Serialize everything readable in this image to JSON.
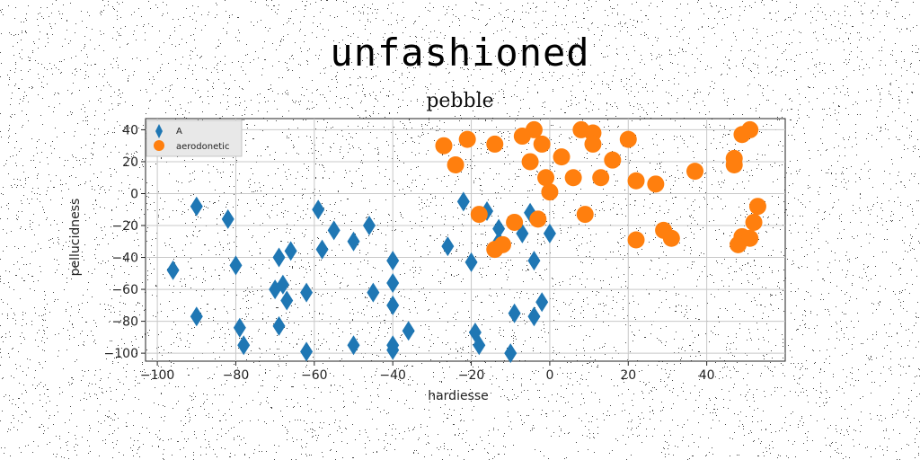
{
  "title": "unfashioned",
  "chart_data": {
    "type": "scatter",
    "title": "pebble",
    "xlabel": "hardiesse",
    "ylabel": "pellucidness",
    "xlim": [
      -103,
      60
    ],
    "ylim": [
      -105,
      47
    ],
    "xticks": [
      -100,
      -80,
      -60,
      -40,
      -20,
      0,
      20,
      40
    ],
    "yticks": [
      40,
      20,
      0,
      -20,
      -40,
      -60,
      -80,
      -100
    ],
    "grid": true,
    "legend_position": "top-left",
    "series": [
      {
        "name": "A",
        "marker": "diamond",
        "color": "#1f77b4",
        "points": [
          [
            -96,
            -48
          ],
          [
            -90,
            -8
          ],
          [
            -90,
            -77
          ],
          [
            -82,
            -16
          ],
          [
            -80,
            -45
          ],
          [
            -79,
            -84
          ],
          [
            -78,
            -95
          ],
          [
            -70,
            -60
          ],
          [
            -69,
            -40
          ],
          [
            -69,
            -83
          ],
          [
            -68,
            -57
          ],
          [
            -67,
            -67
          ],
          [
            -66,
            -36
          ],
          [
            -62,
            -62
          ],
          [
            -62,
            -99
          ],
          [
            -59,
            -10
          ],
          [
            -58,
            -35
          ],
          [
            -55,
            -23
          ],
          [
            -50,
            -30
          ],
          [
            -50,
            -95
          ],
          [
            -46,
            -20
          ],
          [
            -45,
            -62
          ],
          [
            -40,
            -42
          ],
          [
            -40,
            -56
          ],
          [
            -40,
            -70
          ],
          [
            -40,
            -95
          ],
          [
            -40,
            -98
          ],
          [
            -36,
            -86
          ],
          [
            -26,
            -33
          ],
          [
            -22,
            -5
          ],
          [
            -20,
            -43
          ],
          [
            -19,
            -87
          ],
          [
            -18,
            -95
          ],
          [
            -16,
            -11
          ],
          [
            -13,
            -22
          ],
          [
            -13,
            -30
          ],
          [
            -10,
            -100
          ],
          [
            -9,
            -75
          ],
          [
            -7,
            -25
          ],
          [
            -5,
            -12
          ],
          [
            -4,
            -42
          ],
          [
            -4,
            -77
          ],
          [
            -2,
            -68
          ],
          [
            0,
            -25
          ]
        ]
      },
      {
        "name": "aerodonetic",
        "marker": "circle",
        "color": "#ff7f0e",
        "points": [
          [
            -27,
            30
          ],
          [
            -24,
            18
          ],
          [
            -21,
            34
          ],
          [
            -18,
            -13
          ],
          [
            -14,
            31
          ],
          [
            -14,
            -35
          ],
          [
            -12,
            -32
          ],
          [
            -9,
            -18
          ],
          [
            -7,
            36
          ],
          [
            -5,
            20
          ],
          [
            -4,
            40
          ],
          [
            -3,
            -16
          ],
          [
            -2,
            31
          ],
          [
            -1,
            10
          ],
          [
            0,
            1
          ],
          [
            3,
            23
          ],
          [
            6,
            10
          ],
          [
            8,
            40
          ],
          [
            9,
            -13
          ],
          [
            11,
            38
          ],
          [
            11,
            31
          ],
          [
            13,
            10
          ],
          [
            16,
            21
          ],
          [
            20,
            34
          ],
          [
            22,
            8
          ],
          [
            22,
            -29
          ],
          [
            27,
            6
          ],
          [
            29,
            -23
          ],
          [
            31,
            -28
          ],
          [
            37,
            14
          ],
          [
            47,
            22
          ],
          [
            47,
            18
          ],
          [
            48,
            -32
          ],
          [
            49,
            -27
          ],
          [
            49,
            37
          ],
          [
            51,
            40
          ],
          [
            51,
            -28
          ],
          [
            52,
            -18
          ],
          [
            53,
            -8
          ]
        ]
      }
    ]
  }
}
